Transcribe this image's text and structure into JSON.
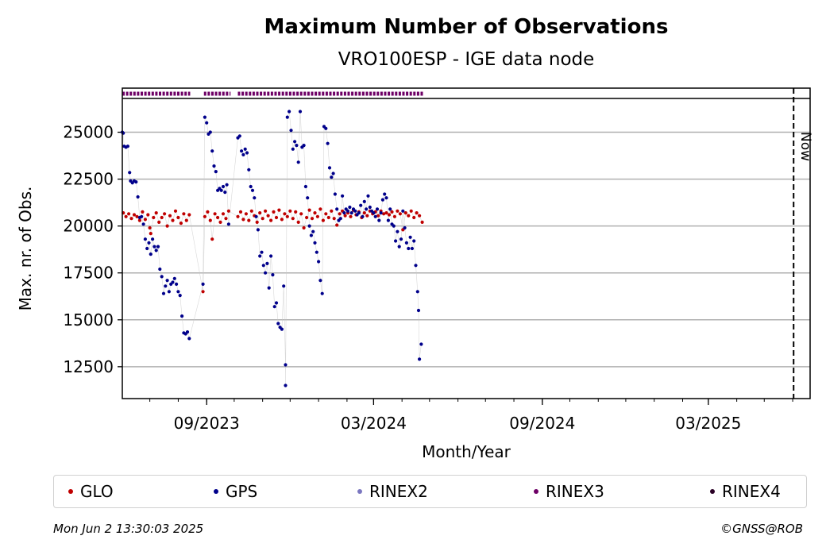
{
  "footer": {
    "timestamp": "Mon Jun  2 13:30:03 2025",
    "copyright": "©GNSS@ROB"
  },
  "chart_data": {
    "type": "scatter",
    "title": "Maximum Number of Observations",
    "subtitle": "VRO100ESP - IGE data node",
    "xlabel": "Month/Year",
    "ylabel": "Max. nr. of Obs.",
    "xlim": [
      "2023-06-01",
      "2025-06-20"
    ],
    "ylim": [
      10800,
      26800
    ],
    "xticks": [
      "2023-09-01",
      "2024-03-01",
      "2024-09-01",
      "2025-03-01"
    ],
    "xtick_labels": [
      "09/2023",
      "03/2024",
      "09/2024",
      "03/2025"
    ],
    "yticks": [
      12500,
      15000,
      17500,
      20000,
      22500,
      25000
    ],
    "ytick_labels": [
      "12500",
      "15000",
      "17500",
      "20000",
      "22500",
      "25000"
    ],
    "grid": "horizontal",
    "now_marker": {
      "date": "2025-06-02",
      "label": "Now"
    },
    "legend_position": "bottom",
    "rinex3_coverage": [
      {
        "start": "2023-06-01",
        "end": "2023-08-14"
      },
      {
        "start": "2023-08-29",
        "end": "2023-09-27"
      },
      {
        "start": "2023-10-05",
        "end": "2024-04-24"
      }
    ],
    "series": [
      {
        "name": "GLO",
        "color": "#c00000",
        "points": [
          [
            "2023-06-02",
            20700
          ],
          [
            "2023-06-05",
            20500
          ],
          [
            "2023-06-08",
            20650
          ],
          [
            "2023-06-11",
            20400
          ],
          [
            "2023-06-14",
            20600
          ],
          [
            "2023-06-17",
            20500
          ],
          [
            "2023-06-20",
            20300
          ],
          [
            "2023-06-23",
            20750
          ],
          [
            "2023-06-26",
            20350
          ],
          [
            "2023-06-29",
            20600
          ],
          [
            "2023-07-01",
            19900
          ],
          [
            "2023-07-02",
            19600
          ],
          [
            "2023-07-05",
            20450
          ],
          [
            "2023-07-08",
            20700
          ],
          [
            "2023-07-11",
            20200
          ],
          [
            "2023-07-14",
            20450
          ],
          [
            "2023-07-17",
            20650
          ],
          [
            "2023-07-20",
            20000
          ],
          [
            "2023-07-23",
            20550
          ],
          [
            "2023-07-26",
            20300
          ],
          [
            "2023-07-29",
            20800
          ],
          [
            "2023-08-01",
            20450
          ],
          [
            "2023-08-04",
            20150
          ],
          [
            "2023-08-07",
            20650
          ],
          [
            "2023-08-10",
            20300
          ],
          [
            "2023-08-13",
            20600
          ],
          [
            "2023-08-28",
            16500
          ],
          [
            "2023-08-30",
            20500
          ],
          [
            "2023-09-02",
            20750
          ],
          [
            "2023-09-05",
            20300
          ],
          [
            "2023-09-07",
            19300
          ],
          [
            "2023-09-10",
            20650
          ],
          [
            "2023-09-13",
            20450
          ],
          [
            "2023-09-16",
            20200
          ],
          [
            "2023-09-19",
            20650
          ],
          [
            "2023-09-22",
            20400
          ],
          [
            "2023-09-25",
            20800
          ],
          [
            "2023-10-05",
            20500
          ],
          [
            "2023-10-08",
            20750
          ],
          [
            "2023-10-11",
            20350
          ],
          [
            "2023-10-14",
            20650
          ],
          [
            "2023-10-17",
            20300
          ],
          [
            "2023-10-20",
            20800
          ],
          [
            "2023-10-23",
            20550
          ],
          [
            "2023-10-26",
            20200
          ],
          [
            "2023-10-29",
            20700
          ],
          [
            "2023-11-01",
            20400
          ],
          [
            "2023-11-04",
            20800
          ],
          [
            "2023-11-07",
            20550
          ],
          [
            "2023-11-10",
            20300
          ],
          [
            "2023-11-13",
            20750
          ],
          [
            "2023-11-16",
            20450
          ],
          [
            "2023-11-19",
            20850
          ],
          [
            "2023-11-22",
            20350
          ],
          [
            "2023-11-25",
            20650
          ],
          [
            "2023-11-28",
            20500
          ],
          [
            "2023-12-01",
            20800
          ],
          [
            "2023-12-04",
            20400
          ],
          [
            "2023-12-07",
            20750
          ],
          [
            "2023-12-10",
            20200
          ],
          [
            "2023-12-13",
            20650
          ],
          [
            "2023-12-16",
            19900
          ],
          [
            "2023-12-19",
            20450
          ],
          [
            "2023-12-22",
            20850
          ],
          [
            "2023-12-25",
            20400
          ],
          [
            "2023-12-28",
            20700
          ],
          [
            "2023-12-31",
            20500
          ],
          [
            "2024-01-03",
            20900
          ],
          [
            "2024-01-06",
            20300
          ],
          [
            "2024-01-09",
            20650
          ],
          [
            "2024-01-12",
            20450
          ],
          [
            "2024-01-15",
            20800
          ],
          [
            "2024-01-18",
            20400
          ],
          [
            "2024-01-21",
            20050
          ],
          [
            "2024-01-24",
            20650
          ],
          [
            "2024-01-27",
            20800
          ],
          [
            "2024-01-30",
            20550
          ],
          [
            "2024-02-02",
            20700
          ],
          [
            "2024-02-05",
            20500
          ],
          [
            "2024-02-08",
            20850
          ],
          [
            "2024-02-11",
            20600
          ],
          [
            "2024-02-14",
            20750
          ],
          [
            "2024-02-17",
            20450
          ],
          [
            "2024-02-20",
            20700
          ],
          [
            "2024-02-23",
            20550
          ],
          [
            "2024-02-26",
            20800
          ],
          [
            "2024-02-29",
            20650
          ],
          [
            "2024-03-03",
            20750
          ],
          [
            "2024-03-06",
            20550
          ],
          [
            "2024-03-09",
            20800
          ],
          [
            "2024-03-12",
            20650
          ],
          [
            "2024-03-15",
            20700
          ],
          [
            "2024-03-18",
            20600
          ],
          [
            "2024-03-21",
            20750
          ],
          [
            "2024-03-24",
            20500
          ],
          [
            "2024-03-27",
            20800
          ],
          [
            "2024-03-30",
            20650
          ],
          [
            "2024-04-02",
            19800
          ],
          [
            "2024-04-05",
            20700
          ],
          [
            "2024-04-08",
            20550
          ],
          [
            "2024-04-11",
            20800
          ],
          [
            "2024-04-14",
            20450
          ],
          [
            "2024-04-17",
            20700
          ],
          [
            "2024-04-20",
            20550
          ],
          [
            "2024-04-23",
            20200
          ]
        ]
      },
      {
        "name": "GPS",
        "color": "#00008b",
        "points": [
          [
            "2023-06-01",
            25000
          ],
          [
            "2023-06-02",
            24950
          ],
          [
            "2023-06-03",
            24250
          ],
          [
            "2023-06-05",
            24200
          ],
          [
            "2023-06-07",
            24250
          ],
          [
            "2023-06-09",
            22850
          ],
          [
            "2023-06-10",
            22400
          ],
          [
            "2023-06-12",
            22300
          ],
          [
            "2023-06-14",
            22400
          ],
          [
            "2023-06-16",
            22350
          ],
          [
            "2023-06-18",
            21550
          ],
          [
            "2023-06-20",
            20450
          ],
          [
            "2023-06-22",
            20500
          ],
          [
            "2023-06-24",
            20100
          ],
          [
            "2023-06-26",
            19300
          ],
          [
            "2023-06-28",
            18800
          ],
          [
            "2023-06-30",
            19100
          ],
          [
            "2023-07-02",
            18500
          ],
          [
            "2023-07-04",
            19300
          ],
          [
            "2023-07-06",
            18900
          ],
          [
            "2023-07-08",
            18700
          ],
          [
            "2023-07-10",
            18900
          ],
          [
            "2023-07-12",
            17700
          ],
          [
            "2023-07-14",
            17300
          ],
          [
            "2023-07-16",
            16400
          ],
          [
            "2023-07-18",
            16800
          ],
          [
            "2023-07-20",
            17100
          ],
          [
            "2023-07-22",
            16500
          ],
          [
            "2023-07-24",
            16900
          ],
          [
            "2023-07-26",
            17000
          ],
          [
            "2023-07-28",
            17200
          ],
          [
            "2023-07-30",
            16900
          ],
          [
            "2023-08-01",
            16500
          ],
          [
            "2023-08-03",
            16300
          ],
          [
            "2023-08-05",
            15200
          ],
          [
            "2023-08-07",
            14300
          ],
          [
            "2023-08-09",
            14250
          ],
          [
            "2023-08-11",
            14350
          ],
          [
            "2023-08-13",
            14000
          ],
          [
            "2023-08-28",
            16900
          ],
          [
            "2023-08-30",
            25800
          ],
          [
            "2023-09-01",
            25500
          ],
          [
            "2023-09-03",
            24900
          ],
          [
            "2023-09-05",
            25000
          ],
          [
            "2023-09-07",
            24000
          ],
          [
            "2023-09-09",
            23200
          ],
          [
            "2023-09-11",
            22900
          ],
          [
            "2023-09-13",
            21900
          ],
          [
            "2023-09-15",
            22000
          ],
          [
            "2023-09-17",
            21900
          ],
          [
            "2023-09-19",
            22100
          ],
          [
            "2023-09-21",
            21800
          ],
          [
            "2023-09-23",
            22200
          ],
          [
            "2023-09-25",
            20100
          ],
          [
            "2023-10-05",
            24700
          ],
          [
            "2023-10-07",
            24800
          ],
          [
            "2023-10-09",
            24000
          ],
          [
            "2023-10-11",
            23800
          ],
          [
            "2023-10-13",
            24100
          ],
          [
            "2023-10-15",
            23900
          ],
          [
            "2023-10-17",
            23000
          ],
          [
            "2023-10-19",
            22100
          ],
          [
            "2023-10-21",
            21900
          ],
          [
            "2023-10-23",
            21500
          ],
          [
            "2023-10-25",
            20500
          ],
          [
            "2023-10-27",
            19800
          ],
          [
            "2023-10-29",
            18400
          ],
          [
            "2023-10-31",
            18600
          ],
          [
            "2023-11-02",
            17900
          ],
          [
            "2023-11-04",
            17500
          ],
          [
            "2023-11-06",
            18000
          ],
          [
            "2023-11-08",
            16700
          ],
          [
            "2023-11-10",
            18400
          ],
          [
            "2023-11-12",
            17400
          ],
          [
            "2023-11-14",
            15700
          ],
          [
            "2023-11-16",
            15900
          ],
          [
            "2023-11-18",
            14800
          ],
          [
            "2023-11-20",
            14600
          ],
          [
            "2023-11-22",
            14500
          ],
          [
            "2023-11-24",
            16800
          ],
          [
            "2023-11-26",
            12600
          ],
          [
            "2023-11-26",
            11500
          ],
          [
            "2023-11-28",
            25800
          ],
          [
            "2023-11-30",
            26100
          ],
          [
            "2023-12-02",
            25100
          ],
          [
            "2023-12-04",
            24100
          ],
          [
            "2023-12-06",
            24500
          ],
          [
            "2023-12-08",
            24300
          ],
          [
            "2023-12-10",
            23400
          ],
          [
            "2023-12-12",
            26100
          ],
          [
            "2023-12-14",
            24200
          ],
          [
            "2023-12-16",
            24300
          ],
          [
            "2023-12-18",
            22100
          ],
          [
            "2023-12-20",
            21500
          ],
          [
            "2023-12-22",
            20000
          ],
          [
            "2023-12-24",
            19500
          ],
          [
            "2023-12-26",
            19700
          ],
          [
            "2023-12-28",
            19100
          ],
          [
            "2023-12-30",
            18600
          ],
          [
            "2024-01-01",
            18100
          ],
          [
            "2024-01-03",
            17100
          ],
          [
            "2024-01-05",
            16400
          ],
          [
            "2024-01-07",
            25300
          ],
          [
            "2024-01-09",
            25200
          ],
          [
            "2024-01-11",
            24400
          ],
          [
            "2024-01-13",
            23100
          ],
          [
            "2024-01-15",
            22600
          ],
          [
            "2024-01-17",
            22800
          ],
          [
            "2024-01-19",
            21700
          ],
          [
            "2024-01-21",
            20900
          ],
          [
            "2024-01-23",
            20300
          ],
          [
            "2024-01-25",
            20400
          ],
          [
            "2024-01-27",
            21600
          ],
          [
            "2024-01-29",
            20700
          ],
          [
            "2024-01-31",
            20900
          ],
          [
            "2024-02-02",
            20800
          ],
          [
            "2024-02-04",
            21000
          ],
          [
            "2024-02-06",
            20700
          ],
          [
            "2024-02-08",
            20900
          ],
          [
            "2024-02-10",
            20800
          ],
          [
            "2024-02-12",
            20600
          ],
          [
            "2024-02-14",
            20700
          ],
          [
            "2024-02-16",
            21100
          ],
          [
            "2024-02-18",
            20500
          ],
          [
            "2024-02-20",
            21300
          ],
          [
            "2024-02-22",
            20900
          ],
          [
            "2024-02-24",
            21600
          ],
          [
            "2024-02-26",
            21000
          ],
          [
            "2024-02-28",
            20800
          ],
          [
            "2024-03-01",
            20700
          ],
          [
            "2024-03-03",
            20500
          ],
          [
            "2024-03-05",
            20900
          ],
          [
            "2024-03-07",
            20300
          ],
          [
            "2024-03-09",
            20700
          ],
          [
            "2024-03-11",
            21400
          ],
          [
            "2024-03-13",
            21700
          ],
          [
            "2024-03-15",
            21500
          ],
          [
            "2024-03-17",
            20300
          ],
          [
            "2024-03-19",
            20900
          ],
          [
            "2024-03-21",
            20100
          ],
          [
            "2024-03-23",
            20000
          ],
          [
            "2024-03-25",
            19200
          ],
          [
            "2024-03-27",
            19700
          ],
          [
            "2024-03-29",
            18900
          ],
          [
            "2024-03-31",
            19300
          ],
          [
            "2024-04-02",
            20800
          ],
          [
            "2024-04-04",
            19900
          ],
          [
            "2024-04-06",
            19100
          ],
          [
            "2024-04-08",
            18800
          ],
          [
            "2024-04-10",
            19400
          ],
          [
            "2024-04-12",
            18800
          ],
          [
            "2024-04-14",
            19200
          ],
          [
            "2024-04-16",
            17900
          ],
          [
            "2024-04-18",
            16500
          ],
          [
            "2024-04-19",
            15500
          ],
          [
            "2024-04-20",
            12900
          ],
          [
            "2024-04-22",
            13700
          ]
        ]
      },
      {
        "name": "RINEX2",
        "color": "#7b77c0",
        "points": []
      },
      {
        "name": "RINEX3",
        "color": "#6e0066",
        "points": []
      },
      {
        "name": "RINEX4",
        "color": "#2a0026",
        "points": []
      }
    ]
  }
}
